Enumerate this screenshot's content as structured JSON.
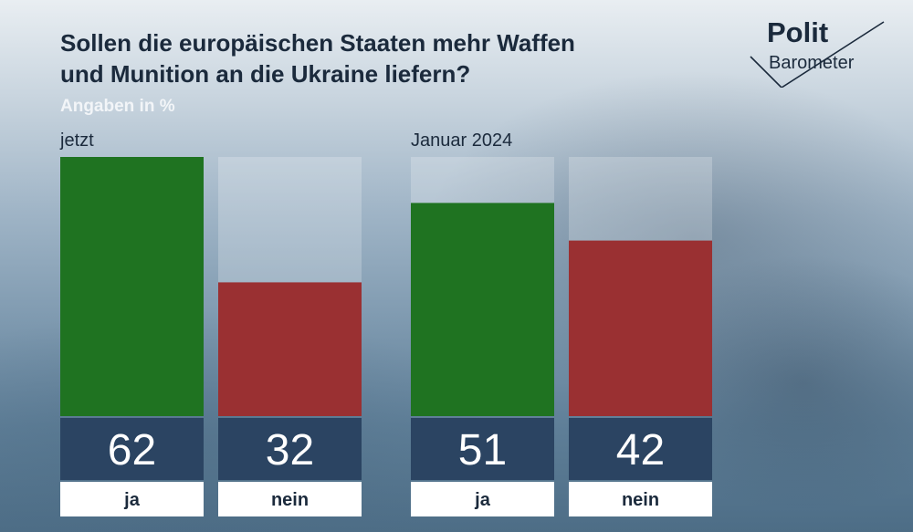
{
  "title": {
    "line1": "Sollen die europäischen Staaten mehr Waffen",
    "line2": "und Munition an die Ukraine liefern?"
  },
  "unit_label": "Angaben in %",
  "logo": {
    "line1": "Polit",
    "line2": "Barometer"
  },
  "colors": {
    "ja": "#1f7321",
    "nein": "#9a3032",
    "value_box": "#2b4462",
    "label_box": "#ffffff",
    "track": "rgba(255,255,255,0.22)",
    "title": "#1b2a3c"
  },
  "chart_data": {
    "type": "bar",
    "title": "Sollen die europäischen Staaten mehr Waffen und Munition an die Ukraine liefern?",
    "unit": "Angaben in %",
    "ylim": [
      0,
      62
    ],
    "grid": false,
    "groups": [
      {
        "label": "jetzt",
        "bars": [
          {
            "category": "ja",
            "value": 62,
            "color": "#1f7321"
          },
          {
            "category": "nein",
            "value": 32,
            "color": "#9a3032"
          }
        ]
      },
      {
        "label": "Januar 2024",
        "bars": [
          {
            "category": "ja",
            "value": 51,
            "color": "#1f7321"
          },
          {
            "category": "nein",
            "value": 42,
            "color": "#9a3032"
          }
        ]
      }
    ]
  }
}
